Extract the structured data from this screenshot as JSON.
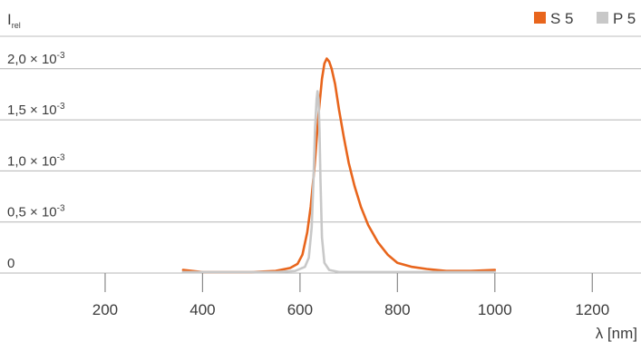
{
  "chart_data": {
    "type": "line",
    "ylabel": "I",
    "ylabel_sub": "rel",
    "xlabel": "λ [nm]",
    "xlim": [
      0,
      1300
    ],
    "ylim": [
      0,
      0.0021
    ],
    "x_ticks": [
      200,
      400,
      600,
      800,
      1000,
      1200
    ],
    "x_tick_labels": [
      "200",
      "400",
      "600",
      "800",
      "1000",
      "1200"
    ],
    "y_ticks": [
      {
        "value": 0,
        "mantissa": "0",
        "exp": ""
      },
      {
        "value": 0.0005,
        "mantissa": "0,5 × 10",
        "exp": "-3"
      },
      {
        "value": 0.001,
        "mantissa": "1,0 × 10",
        "exp": "-3"
      },
      {
        "value": 0.0015,
        "mantissa": "1,5 × 10",
        "exp": "-3"
      },
      {
        "value": 0.002,
        "mantissa": "2,0 × 10",
        "exp": "-3"
      }
    ],
    "grid": true,
    "legend_position": "top-right",
    "series": [
      {
        "name": "S 5",
        "color": "#e8651c",
        "x": [
          360,
          400,
          450,
          500,
          550,
          580,
          595,
          605,
          615,
          622,
          630,
          638,
          645,
          650,
          655,
          660,
          665,
          672,
          680,
          690,
          700,
          712,
          725,
          740,
          760,
          780,
          800,
          830,
          860,
          900,
          950,
          1000
        ],
        "y": [
          3e-05,
          1e-05,
          1e-05,
          1e-05,
          2e-05,
          5e-05,
          9e-05,
          0.00018,
          0.0004,
          0.00065,
          0.00105,
          0.00155,
          0.0019,
          0.00205,
          0.0021,
          0.00207,
          0.002,
          0.00185,
          0.0016,
          0.00133,
          0.00108,
          0.00085,
          0.00065,
          0.00047,
          0.0003,
          0.00018,
          0.0001,
          6e-05,
          4e-05,
          2e-05,
          2e-05,
          3e-05
        ]
      },
      {
        "name": "P 5",
        "color": "#c8c8c8",
        "x": [
          360,
          400,
          450,
          500,
          550,
          590,
          610,
          618,
          624,
          628,
          631,
          634,
          636,
          638,
          640,
          642,
          645,
          650,
          660,
          680,
          700,
          750,
          800,
          900,
          1000
        ],
        "y": [
          1e-05,
          1e-05,
          1e-05,
          1e-05,
          1e-05,
          2e-05,
          6e-05,
          0.00015,
          0.00045,
          0.00095,
          0.00142,
          0.0017,
          0.00178,
          0.0017,
          0.0014,
          0.0009,
          0.00035,
          0.0001,
          3e-05,
          1e-05,
          1e-05,
          1e-05,
          1e-05,
          1e-05,
          1e-05
        ]
      }
    ]
  }
}
